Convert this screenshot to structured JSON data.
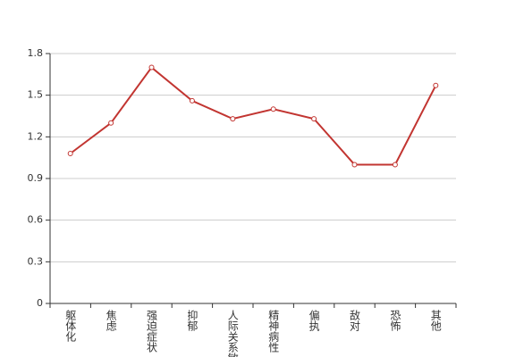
{
  "chart_data": {
    "type": "line",
    "categories": [
      "躯体化",
      "焦虑",
      "强迫症状",
      "抑郁",
      "人际关系敏感",
      "精神病性",
      "偏执",
      "敌对",
      "恐怖",
      "其他"
    ],
    "values": [
      1.08,
      1.3,
      1.7,
      1.46,
      1.33,
      1.4,
      1.33,
      1.0,
      1.0,
      1.57
    ],
    "color": "#c23531",
    "ylim": [
      0,
      1.8
    ],
    "yticks": [
      0,
      0.3,
      0.6,
      0.9,
      1.2,
      1.5,
      1.8
    ],
    "grid": true
  }
}
